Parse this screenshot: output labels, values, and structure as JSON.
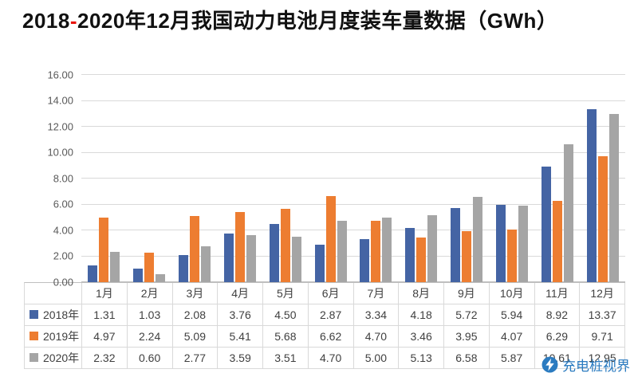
{
  "title": {
    "part1": "2018",
    "dash": "-",
    "part2": "2020年12月我国动力电池月度装车量数据（GWh）"
  },
  "watermark": {
    "text": "充电桩视界",
    "color": "#2b7bc0"
  },
  "chart_data": {
    "type": "bar",
    "title": "2018-2020年12月我国动力电池月度装车量数据（GWh）",
    "categories": [
      "1月",
      "2月",
      "3月",
      "4月",
      "5月",
      "6月",
      "7月",
      "8月",
      "9月",
      "10月",
      "11月",
      "12月"
    ],
    "series": [
      {
        "name": "2018年",
        "color": "#4464a4",
        "values": [
          1.31,
          1.03,
          2.08,
          3.76,
          4.5,
          2.87,
          3.34,
          4.18,
          5.72,
          5.94,
          8.92,
          13.37
        ]
      },
      {
        "name": "2019年",
        "color": "#ed7d31",
        "values": [
          4.97,
          2.24,
          5.09,
          5.41,
          5.68,
          6.62,
          4.7,
          3.46,
          3.95,
          4.07,
          6.29,
          9.71
        ]
      },
      {
        "name": "2020年",
        "color": "#a5a5a5",
        "values": [
          2.32,
          0.6,
          2.77,
          3.59,
          3.51,
          4.7,
          5.0,
          5.13,
          6.58,
          5.87,
          10.61,
          12.95
        ]
      }
    ],
    "ylim": [
      0,
      16
    ],
    "ytick_step": 2,
    "yticks": [
      "16.00",
      "14.00",
      "12.00",
      "10.00",
      "8.00",
      "6.00",
      "4.00",
      "2.00",
      "0.00"
    ],
    "grid": true,
    "legend_position": "table-left",
    "value_decimals": 2
  }
}
